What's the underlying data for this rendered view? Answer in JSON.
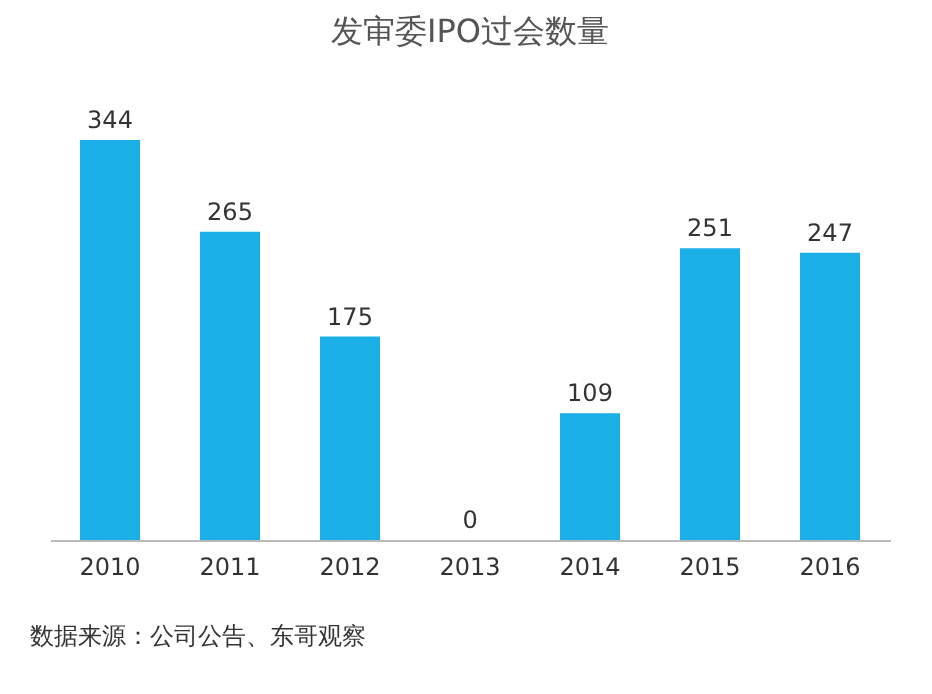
{
  "chart_data": {
    "type": "bar",
    "title": "发审委IPO过会数量",
    "categories": [
      "2010",
      "2011",
      "2012",
      "2013",
      "2014",
      "2015",
      "2016"
    ],
    "values": [
      344,
      265,
      175,
      0,
      109,
      251,
      247
    ],
    "color": "#1aafe6",
    "data_labels": true,
    "grid": false,
    "annotations": [
      "数据来源：公司公告、东哥观察"
    ]
  }
}
